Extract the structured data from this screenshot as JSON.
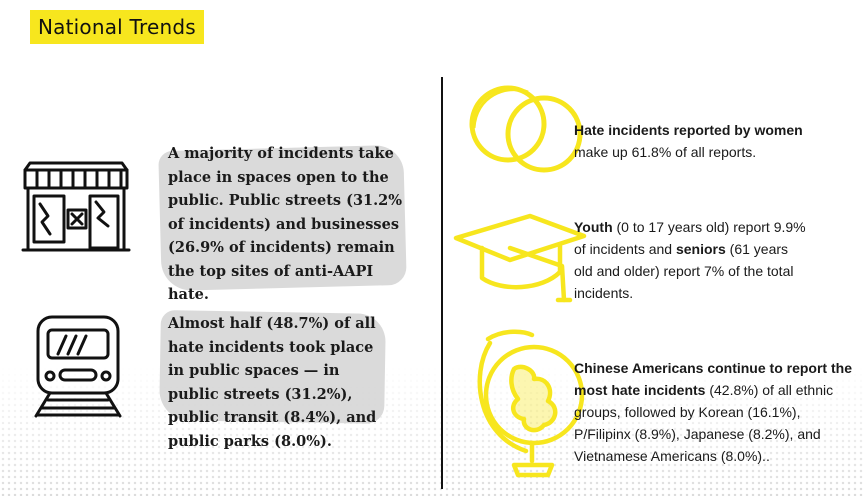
{
  "title": "National Trends",
  "left": {
    "block1": "A majority of incidents take place in spaces open to the public. Public streets (31.2% of incidents) and businesses (26.9% of incidents) remain the top sites of anti-AAPI hate.",
    "block2": "Almost half (48.7%) of all hate incidents took place in public spaces — in public streets (31.2%), public transit (8.4%), and public parks (8.0%)."
  },
  "right": {
    "women": {
      "bold": "Hate incidents reported by women",
      "rest": "make up 61.8% of all reports."
    },
    "age": {
      "bold1": "Youth",
      "part1": " (0 to 17 years old) report 9.9% of incidents and ",
      "bold2": "seniors",
      "part2": " (61 years old and older) report 7% of the total incidents."
    },
    "ethnic": {
      "bold": "Chinese Americans continue to report the most hate incidents",
      "rest": " (42.8%) of all ethnic groups, followed by Korean (16.1%), P/Filipinx (8.9%), Japanese (8.2%), and Vietnamese Americans (8.0%).."
    }
  },
  "icons": {
    "storefront": "storefront-icon",
    "train": "train-icon",
    "venn": "venn-circles-icon",
    "graduation": "graduation-cap-icon",
    "globe": "globe-icon"
  },
  "colors": {
    "accent": "#f7e61e",
    "text": "#1a1a1a",
    "texture": "#d4d4d4"
  }
}
